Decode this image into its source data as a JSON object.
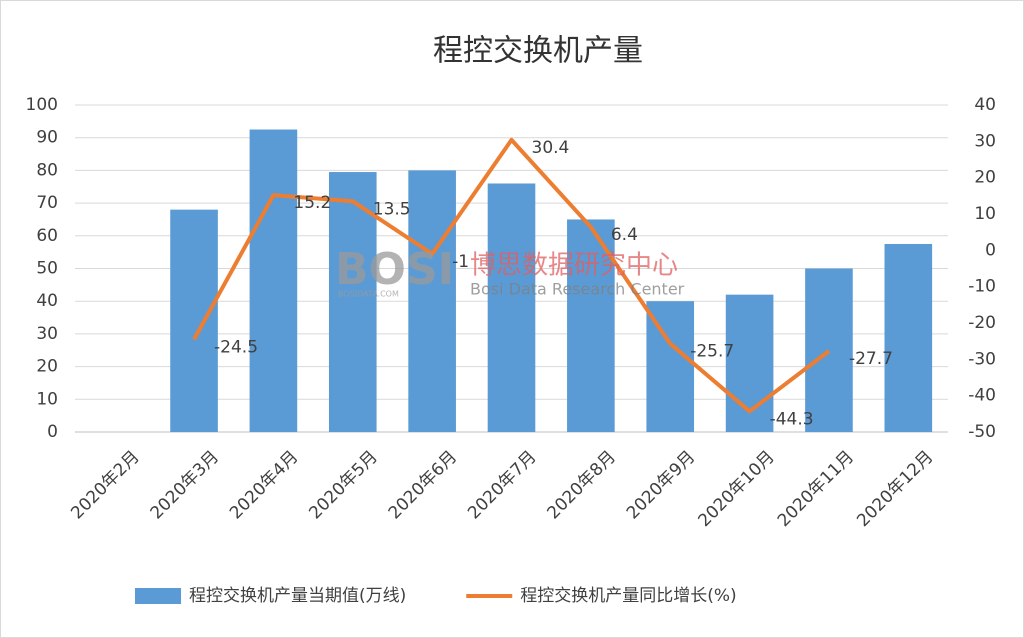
{
  "chart_data": {
    "type": "bar",
    "title": "程控交换机产量",
    "watermark": {
      "brand": "BOSI",
      "name": "博思数据研究中心",
      "english": "Bosi Data Research Center",
      "site": "BOSIDATA.COM"
    },
    "categories": [
      "2020年2月",
      "2020年3月",
      "2020年4月",
      "2020年5月",
      "2020年6月",
      "2020年7月",
      "2020年8月",
      "2020年9月",
      "2020年10月",
      "2020年11月",
      "2020年12月"
    ],
    "series": [
      {
        "name": "程控交换机产量当期值(万线)",
        "type": "bar",
        "color": "#5b9bd5",
        "values": [
          null,
          68,
          92.5,
          79.5,
          80,
          76,
          65,
          40,
          42,
          50,
          57.5
        ]
      },
      {
        "name": "程控交换机产量同比增长(%)",
        "type": "line",
        "axis": "y2",
        "color": "#ed7d31",
        "values": [
          null,
          -24.5,
          15.2,
          13.5,
          -1,
          30.4,
          6.4,
          -25.7,
          -44.3,
          -27.7,
          null
        ]
      }
    ],
    "ylim": [
      0,
      100
    ],
    "yticks": [
      0,
      10,
      20,
      30,
      40,
      50,
      60,
      70,
      80,
      90,
      100
    ],
    "y2lim": [
      -50,
      40
    ],
    "y2ticks": [
      -50,
      -40,
      -30,
      -20,
      -10,
      0,
      10,
      20,
      30,
      40
    ],
    "grid": true,
    "legend": "bottom"
  }
}
